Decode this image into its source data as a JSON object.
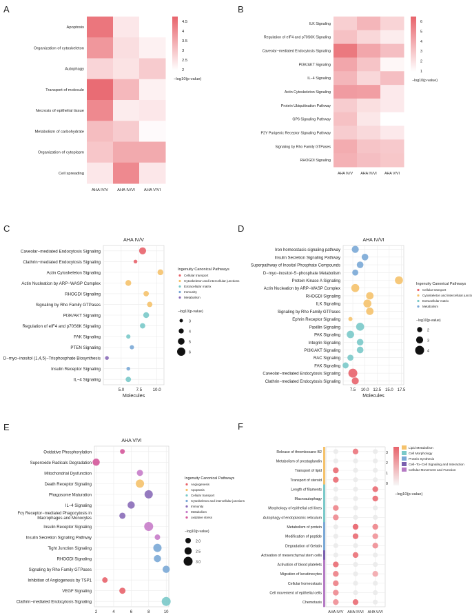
{
  "colors": {
    "heat_low": "#ffffff",
    "heat_high": "#e8636b",
    "grid": "#ebebeb",
    "point_red": "#e8636b",
    "point_orange": "#f5c26b",
    "point_teal": "#7ac9c9",
    "point_blue": "#7aa8d6",
    "point_purple": "#8a6cb8",
    "point_pink": "#c77cc9",
    "point_magenta": "#d4579a"
  },
  "chart_data": [
    {
      "panel": "A",
      "type": "heatmap",
      "xlabel": "",
      "legend_title": "−log10(p-value)",
      "legend_ticks": [
        "4.5",
        "4",
        "3.5",
        "3",
        "2.5",
        "2"
      ],
      "vmin": 1.5,
      "vmax": 4.8,
      "columns": [
        "AHA IV/V",
        "AHA IV/VI",
        "AHA V/VI"
      ],
      "rows": [
        "Apoptosis",
        "Organization of cytoskeleton",
        "Autophagy",
        "Transport of molecule",
        "Necrosis of epithelial tissue",
        "Metabolism of carbohydrate",
        "Organization of cytoplasm",
        "Cell spreading"
      ],
      "values": [
        [
          4.4,
          2.0,
          1.5
        ],
        [
          3.7,
          2.2,
          1.8
        ],
        [
          2.4,
          2.1,
          2.6
        ],
        [
          4.6,
          3.0,
          1.8
        ],
        [
          4.0,
          1.9,
          2.0
        ],
        [
          2.9,
          2.6,
          1.6
        ],
        [
          2.7,
          3.3,
          3.3
        ],
        [
          2.0,
          4.0,
          2.0
        ]
      ]
    },
    {
      "panel": "B",
      "type": "heatmap",
      "legend_title": "−log10(p-value)",
      "legend_ticks": [
        "6",
        "5",
        "4",
        "3",
        "2",
        "1"
      ],
      "vmin": 0.5,
      "vmax": 6.3,
      "columns": [
        "AHA IV/V",
        "AHA IV/VI",
        "AHA V/VI"
      ],
      "rows": [
        "ILK Signaling",
        "Regulation of eIF4 and p70S6K Signaling",
        "Caveolar−mediated Endocytosis Signaling",
        "PI3K/AKT Signaling",
        "IL−4 Signaling",
        "Actin Cytoskeleton Signaling",
        "Protein Ubiquitination Pathway",
        "GP6 Signaling Pathway",
        "P2Y Purigenic Receptor Signaling Pathway",
        "Signaling by Rho Family GTPases",
        "RHOGDI Signaling"
      ],
      "values": [
        [
          2.3,
          3.2,
          2.1
        ],
        [
          2.8,
          2.0,
          1.2
        ],
        [
          5.5,
          3.8,
          2.9
        ],
        [
          3.8,
          2.7,
          0.8
        ],
        [
          3.2,
          2.0,
          2.9
        ],
        [
          4.2,
          4.1,
          1.3
        ],
        [
          2.4,
          1.7,
          1.3
        ],
        [
          2.8,
          1.4,
          0.5
        ],
        [
          2.4,
          1.9,
          1.3
        ],
        [
          3.6,
          2.7,
          2.5
        ],
        [
          3.4,
          2.9,
          2.6
        ]
      ]
    },
    {
      "panel": "C",
      "type": "scatter",
      "title": "AHA IV/V",
      "xlabel": "Molecules",
      "xlim": [
        2.5,
        11
      ],
      "xticks": [
        5,
        7.5,
        10
      ],
      "xtick_labels": [
        "5.0",
        "7.5",
        "10.0"
      ],
      "legend_title": "Ingenuity Canonical Pathways",
      "legend": [
        "Cellular transport",
        "Cytoskeleton and intercellular junctions",
        "Extracellular matrix",
        "Immunity",
        "Metabolism"
      ],
      "size_title": "−log10(p-value)",
      "size_ticks": [
        "3",
        "4",
        "5",
        "6"
      ],
      "categories": [
        "Caveolar−mediated Endocytosis Signaling",
        "Clathrin−mediated Endocytosis Signaling",
        "Actin Cytoskeleton Signaling",
        "Actin Nucleation by ARP−WASP Complex",
        "RHOGDI Signaling",
        "Signaling by Rho Family GTPases",
        "PI3K/AKT Signaling",
        "Regulation of eIF4 and p70S6K Signaling",
        "FAK Signaling",
        "PTEN Signaling",
        "D−myo−inositol (1,4,5)−Trisphosphate Biosynthesis",
        "Insulin Receptor Signaling",
        "IL−4 Signaling"
      ],
      "x": [
        8,
        7,
        10.5,
        6,
        8.5,
        9,
        8.5,
        8,
        6,
        6.5,
        3,
        6,
        6
      ],
      "p": [
        5.2,
        3.2,
        4.5,
        4.5,
        4.2,
        4.2,
        4.5,
        4.2,
        3.5,
        3.5,
        3.2,
        3.2,
        4.2
      ],
      "group": [
        0,
        0,
        1,
        1,
        1,
        1,
        2,
        2,
        2,
        3,
        4,
        3,
        2
      ]
    },
    {
      "panel": "D",
      "type": "scatter",
      "title": "AHA IV/VI",
      "xlabel": "Molecules",
      "xlim": [
        5.5,
        18
      ],
      "xticks": [
        7.5,
        10,
        12.5,
        15,
        17.5
      ],
      "xtick_labels": [
        "7.5",
        "10.0",
        "12.5",
        "15.0",
        "17.5"
      ],
      "legend_title": "Ingenuity Canonical Pathways",
      "legend": [
        "Cellular transport",
        "Cytoskeleton and intercellular junctions",
        "Extracellular matrix",
        "Metabolism"
      ],
      "size_title": "−log10(p-value)",
      "size_ticks": [
        "2",
        "3",
        "4"
      ],
      "categories": [
        "Iron homeostasis signaling pathway",
        "Insulin Secretion Signaling Pathway",
        "Superpathway of Inositol Phosphate Compounds",
        "D−myo−inositol−5−phosphate Metabolism",
        "Protein Kinase A Signaling",
        "Actin Nucleation by ARP−WASP Complex",
        "RHOGDI Signaling",
        "ILK Signaling",
        "Signaling by Rho Family GTPases",
        "Ephrin Receptor Signaling",
        "Paxillin Signaling",
        "PAK Signaling",
        "Integrin Signaling",
        "PI3K/AKT Signaling",
        "RAC Signaling",
        "FAK Signaling",
        "Caveolar−mediated Endocytosis Signaling",
        "Clathrin−mediated Endocytosis Signaling"
      ],
      "x": [
        8,
        10,
        9,
        8,
        17,
        8,
        11,
        10.5,
        11,
        7,
        9,
        7,
        9,
        9,
        7,
        6,
        7.5,
        8
      ],
      "p": [
        3.0,
        2.8,
        2.8,
        2.5,
        3.5,
        3.5,
        3.2,
        3.5,
        3.2,
        1.5,
        3.5,
        3.2,
        2.8,
        2.8,
        2.5,
        2.5,
        4.0,
        3.0
      ],
      "group": [
        3,
        3,
        3,
        3,
        1,
        1,
        1,
        1,
        1,
        1,
        2,
        2,
        2,
        2,
        2,
        2,
        0,
        0
      ]
    },
    {
      "panel": "E",
      "type": "scatter",
      "title": "AHA V/VI",
      "xlabel": "",
      "xlim": [
        1.8,
        10.3
      ],
      "xticks": [
        2,
        4,
        6,
        8,
        10
      ],
      "xtick_labels": [
        "2",
        "4",
        "6",
        "8",
        "10"
      ],
      "legend_title": "Ingenuity Canonical Pathways",
      "legend": [
        "Angiogenesis",
        "Apoptosis",
        "Cellular transport",
        "Cytoskeleton and intercellular junctions",
        "Immunity",
        "Metabolism",
        "oxidative stress"
      ],
      "size_title": "−log10(p-value)",
      "size_ticks": [
        "2.0",
        "2.5",
        "3.0"
      ],
      "categories": [
        "Oxidative Phosphorylation",
        "Superoxide Radicals Degradation",
        "Mitochondrial Dysfunction",
        "Death Receptor Signaling",
        "Phagosome Maturation",
        "IL−4 Signaling",
        "Fcγ Receptor−mediated Phagocytosis in|Macrophages and Monocytes",
        "Insulin Receptor Signaling",
        "Insulin Secretion Signaling Pathway",
        "Tight Junction Signaling",
        "RHOGDI Signaling",
        "Signaling by Rho Family GTPases",
        "Inhibition of Angiogenesis by TSP1",
        "VEGF Signaling",
        "Clathrin−mediated Endocytosis Signaling"
      ],
      "x": [
        5,
        2,
        7,
        7,
        8,
        6,
        5,
        8,
        9,
        9,
        9,
        10,
        3,
        5,
        10
      ],
      "p": [
        1.8,
        2.5,
        2.2,
        2.8,
        2.8,
        2.5,
        2.2,
        3.0,
        2.0,
        2.8,
        2.5,
        2.5,
        2.0,
        2.2,
        3.0
      ],
      "group": [
        6,
        6,
        5,
        1,
        4,
        4,
        4,
        5,
        5,
        3,
        3,
        3,
        0,
        0,
        2
      ]
    },
    {
      "panel": "F",
      "type": "scatter",
      "xlabel": "",
      "legend_title": "−log10(p-value)",
      "legend_ticks": [
        "3",
        "2",
        "1",
        "0"
      ],
      "vmax": 3.5,
      "columns": [
        "AHA IV/V",
        "AHA IV/VI",
        "AHA V/VI"
      ],
      "category_legend": [
        "Lipid Metabolism",
        "Cell Morphology",
        "Protein Synthesis",
        "Cell−To−Cell Signaling and Interaction",
        "Cellular Movement and Function"
      ],
      "categories": [
        "Release of thromboxane B2",
        "Metabolism of prostaglandin",
        "Transport of lipid",
        "Transport of steroid",
        "Length of filaments",
        "Macroautophagy",
        "Morphology of epithelial cell lines",
        "Autophagy of endoplasmic reticulum",
        "Metabolism of protein",
        "Modification of peptide",
        "Degradation of Gelatin",
        "Activation of mesenchymal stem cells",
        "Activation of blood platelets",
        "Migration of keratinocytes",
        "Cellular homeostasis",
        "Cell movement of epithelial cells",
        "Chemotaxis"
      ],
      "row_group": [
        0,
        0,
        0,
        0,
        1,
        1,
        1,
        1,
        2,
        2,
        2,
        3,
        4,
        4,
        4,
        4,
        4
      ],
      "values": [
        [
          0.3,
          2.8,
          0.3
        ],
        [
          0.3,
          0.4,
          0.3
        ],
        [
          3.0,
          0.3,
          0.3
        ],
        [
          3.0,
          0.3,
          0.3
        ],
        [
          0.3,
          0.4,
          3.0
        ],
        [
          0.3,
          0.3,
          3.0
        ],
        [
          2.5,
          0.3,
          0.3
        ],
        [
          2.4,
          0.3,
          0.3
        ],
        [
          0.3,
          3.2,
          2.5
        ],
        [
          0.3,
          3.0,
          2.2
        ],
        [
          0.3,
          0.3,
          2.3
        ],
        [
          0.3,
          2.9,
          0.3
        ],
        [
          3.0,
          0.3,
          0.3
        ],
        [
          2.6,
          0.3,
          1.8
        ],
        [
          2.6,
          0.3,
          0.3
        ],
        [
          2.4,
          0.3,
          0.3
        ],
        [
          2.3,
          3.0,
          0.3
        ]
      ]
    }
  ]
}
